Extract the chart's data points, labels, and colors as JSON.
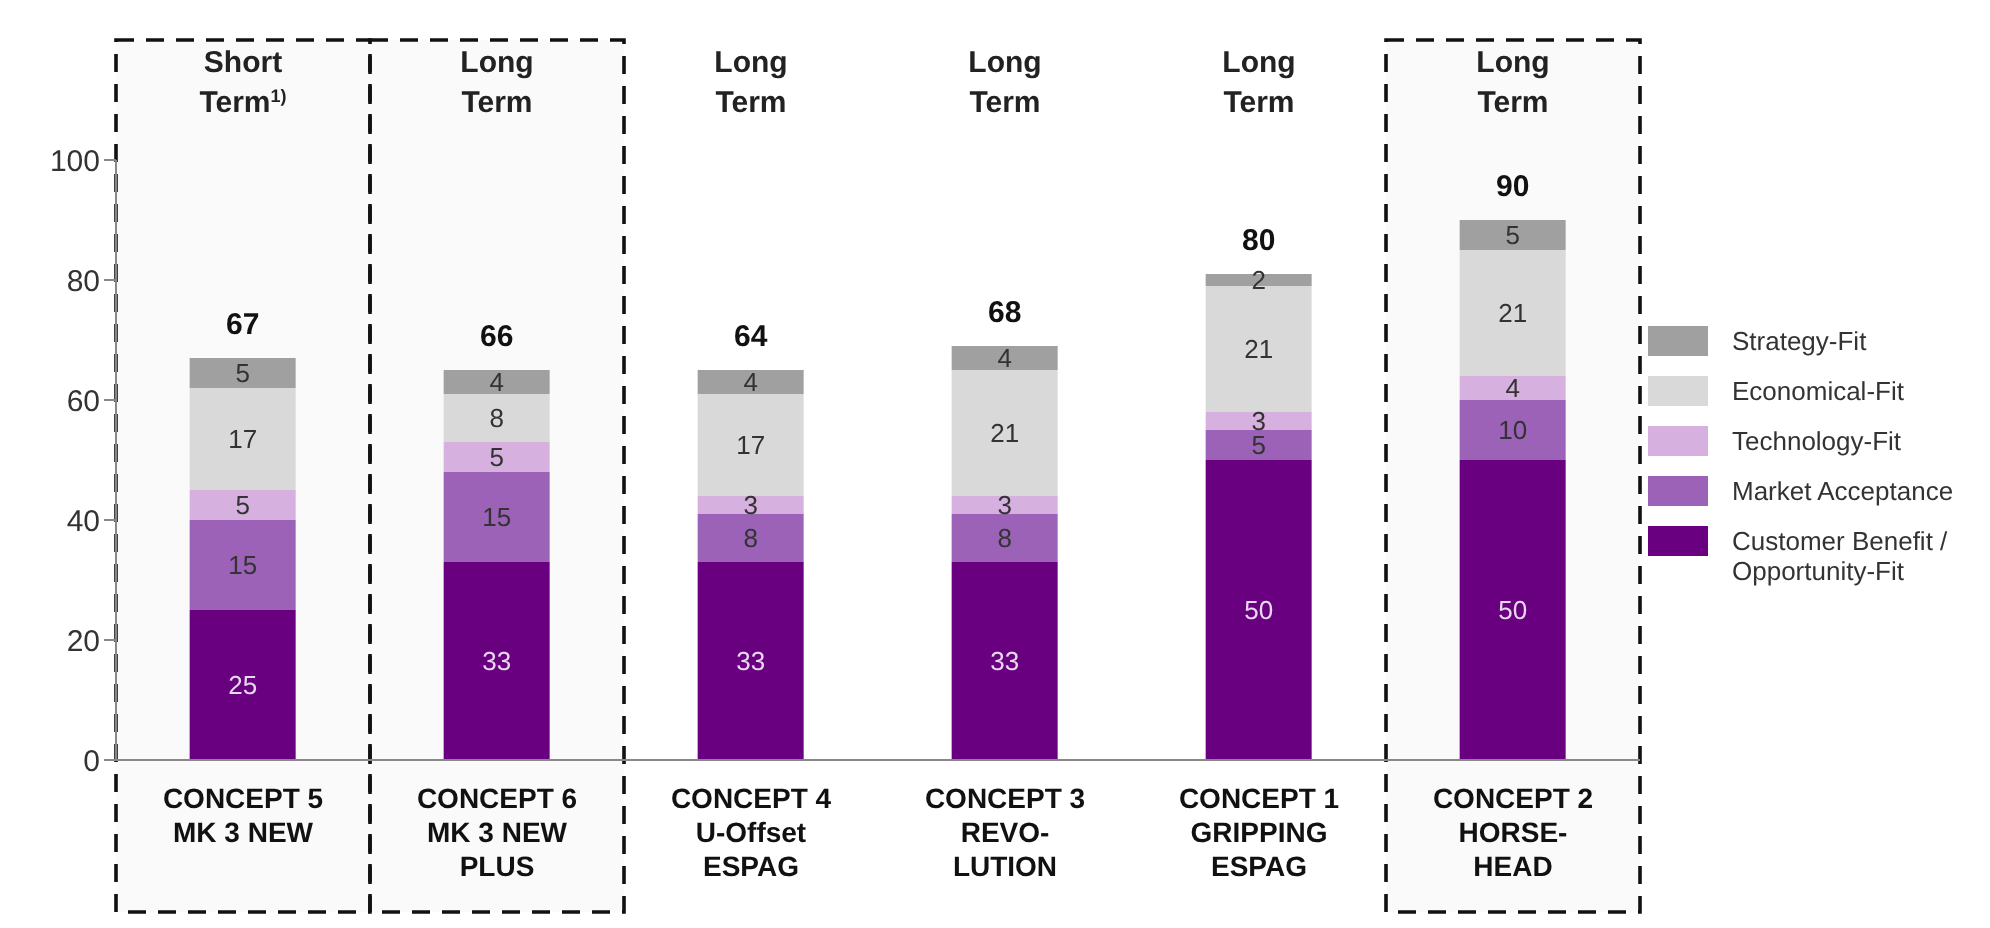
{
  "chart_data": {
    "type": "bar",
    "stacked": true,
    "categories": [
      "CONCEPT 5\nMK 3 NEW",
      "CONCEPT 6\nMK 3 NEW\nPLUS",
      "CONCEPT 4\nU-Offset\nESPAG",
      "CONCEPT 3\nREVO-\nLUTION",
      "CONCEPT 1\nGRIPPING\nESPAG",
      "CONCEPT 2\nHORSE-\nHEAD"
    ],
    "series": [
      {
        "name": "Customer Benefit / Opportunity-Fit",
        "color": "#68007f",
        "values": [
          25,
          33,
          33,
          33,
          50,
          50
        ]
      },
      {
        "name": "Market Acceptance",
        "color": "#9b62b8",
        "values": [
          15,
          15,
          8,
          8,
          5,
          10
        ]
      },
      {
        "name": "Technology-Fit",
        "color": "#d6b0de",
        "values": [
          5,
          5,
          3,
          3,
          3,
          4
        ]
      },
      {
        "name": "Economical-Fit",
        "color": "#d9d9d9",
        "values": [
          17,
          8,
          17,
          21,
          21,
          21
        ]
      },
      {
        "name": "Strategy-Fit",
        "color": "#a0a0a0",
        "values": [
          5,
          4,
          4,
          4,
          2,
          5
        ]
      }
    ],
    "totals": [
      "67",
      "66",
      "64",
      "68",
      "80",
      "90"
    ],
    "data_labels": true,
    "annotations": [
      "Short Term$^{1)}$",
      "Long Term",
      "Long Term",
      "Long Term",
      "Long Term",
      "Long Term"
    ],
    "bands": [
      {
        "axis": "x",
        "from": "CONCEPT 5\nMK 3 NEW",
        "to": "CONCEPT 5\nMK 3 NEW"
      },
      {
        "axis": "x",
        "from": "CONCEPT 6\nMK 3 NEW\nPLUS",
        "to": "CONCEPT 6\nMK 3 NEW\nPLUS"
      },
      {
        "axis": "x",
        "from": "CONCEPT 2\nHORSE-\nHEAD",
        "to": "CONCEPT 2\nHORSE-\nHEAD"
      }
    ],
    "ylim": [
      0,
      100
    ],
    "yticks": [
      0,
      20,
      40,
      60,
      80,
      100
    ],
    "grid": false,
    "legend": "right"
  }
}
